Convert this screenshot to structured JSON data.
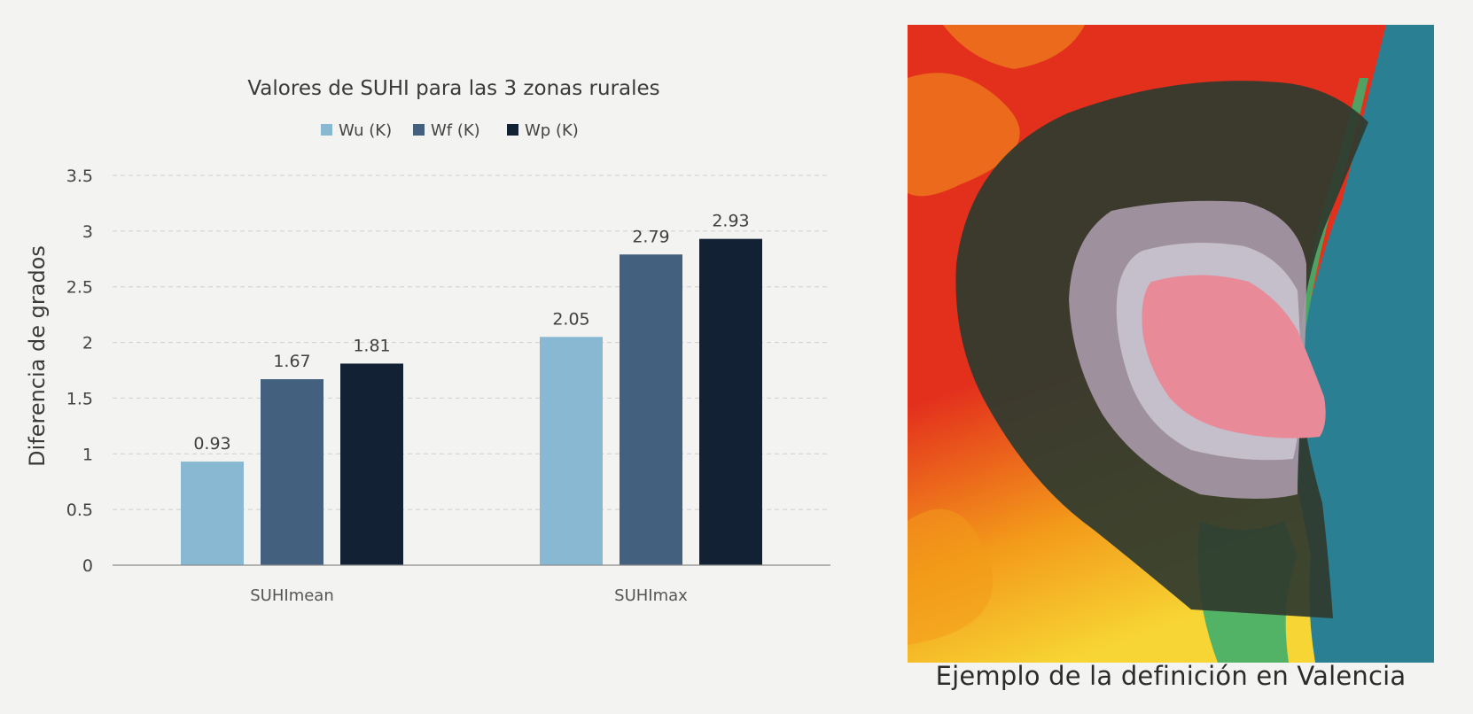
{
  "chart_data": {
    "type": "bar",
    "title": "Valores de SUHI para las 3 zonas rurales",
    "ylabel": "Diferencia de grados",
    "xlabel": "",
    "ylim": [
      0,
      3.5
    ],
    "yticks": [
      0,
      0.5,
      1,
      1.5,
      2,
      2.5,
      3,
      3.5
    ],
    "ytick_labels": [
      "0",
      "0.5",
      "1",
      "1.5",
      "2",
      "2.5",
      "3",
      "3.5"
    ],
    "grid": true,
    "legend_position": "top",
    "categories": [
      "SUHImean",
      "SUHImax"
    ],
    "series": [
      {
        "name": "Wu (K)",
        "color": "#89b9d2",
        "values": [
          0.93,
          2.05
        ],
        "labels": [
          "0.93",
          "2.05"
        ]
      },
      {
        "name": "Wf (K)",
        "color": "#43607e",
        "values": [
          1.67,
          2.79
        ],
        "labels": [
          "1.67",
          "2.79"
        ]
      },
      {
        "name": "Wp (K)",
        "color": "#132135",
        "values": [
          1.81,
          2.93
        ],
        "labels": [
          "1.81",
          "2.93"
        ]
      }
    ]
  },
  "map": {
    "caption": "Ejemplo de la definición en Valencia",
    "colors": {
      "land_hot": "#e3301d",
      "land_warm": "#f39a1a",
      "land_mild": "#f7d534",
      "sea": "#2a7f93",
      "coast": "#3fae6a",
      "outer_zone": "#2f3a2e",
      "middle_zone": "#a99aaa",
      "inner_zone": "#c9c2cf",
      "urban": "#e88a98"
    }
  }
}
